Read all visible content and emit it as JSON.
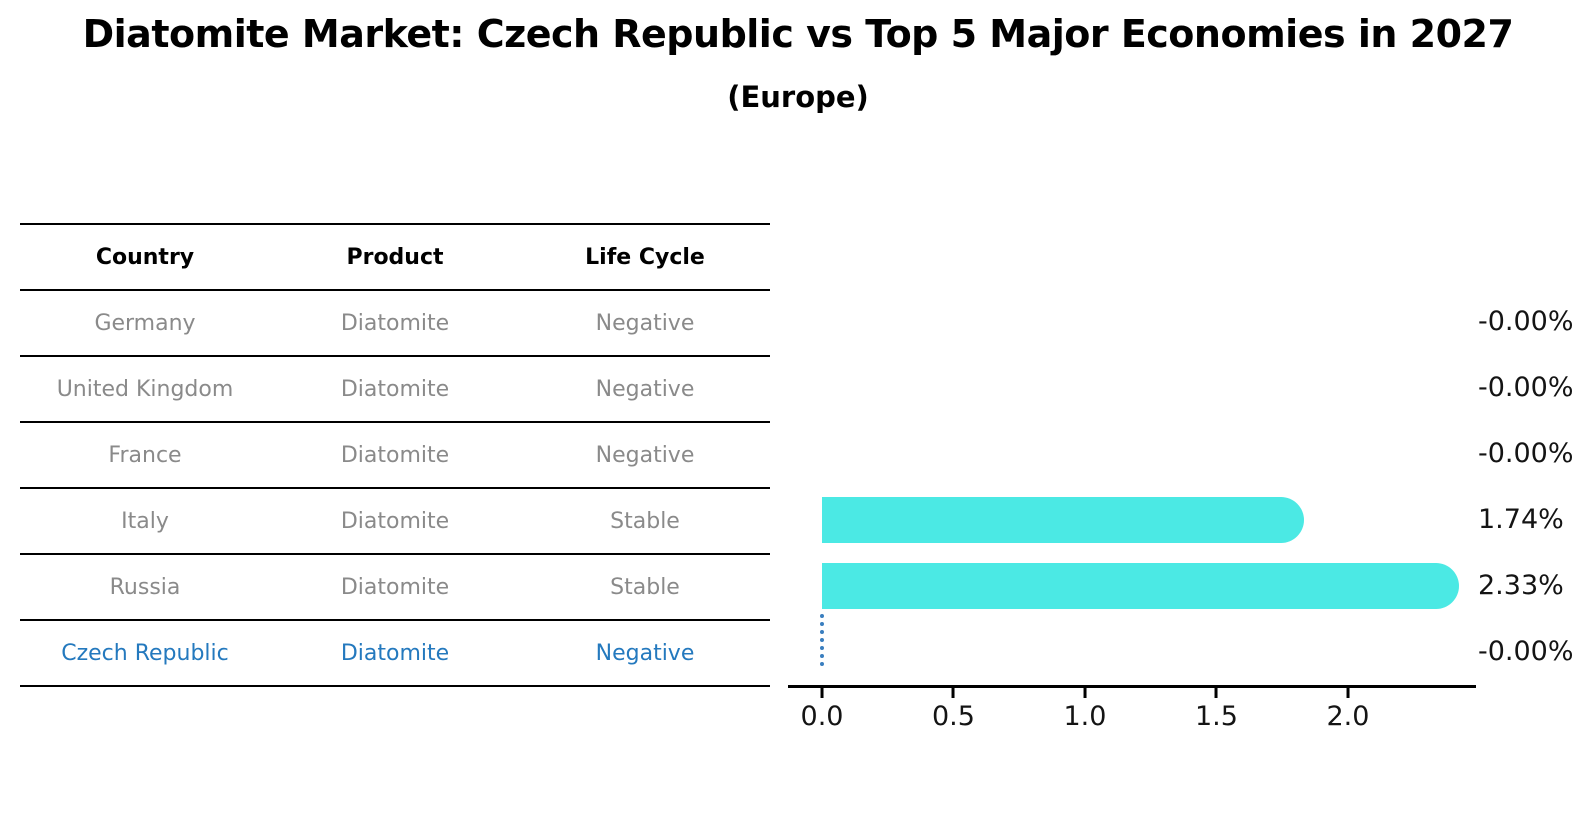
{
  "header": {
    "title": "Diatomite Market: Czech Republic vs Top 5 Major Economies in 2027",
    "subtitle": "(Europe)"
  },
  "table": {
    "columns": [
      "Country",
      "Product",
      "Life Cycle"
    ],
    "rows": [
      {
        "country": "Germany",
        "product": "Diatomite",
        "life_cycle": "Negative",
        "highlighted": false
      },
      {
        "country": "United Kingdom",
        "product": "Diatomite",
        "life_cycle": "Negative",
        "highlighted": false
      },
      {
        "country": "France",
        "product": "Diatomite",
        "life_cycle": "Negative",
        "highlighted": false
      },
      {
        "country": "Italy",
        "product": "Diatomite",
        "life_cycle": "Stable",
        "highlighted": false
      },
      {
        "country": "Russia",
        "product": "Diatomite",
        "life_cycle": "Stable",
        "highlighted": false
      },
      {
        "country": "Czech Republic",
        "product": "Diatomite",
        "life_cycle": "Negative",
        "highlighted": true
      }
    ]
  },
  "chart_data": {
    "type": "bar",
    "orientation": "horizontal",
    "title": "Diatomite Market: Czech Republic vs Top 5 Major Economies in 2027",
    "subtitle": "(Europe)",
    "categories": [
      "Germany",
      "United Kingdom",
      "France",
      "Italy",
      "Russia",
      "Czech Republic"
    ],
    "values": [
      -0.0,
      -0.0,
      -0.0,
      1.74,
      2.33,
      -0.0
    ],
    "value_labels": [
      "-0.00%",
      "-0.00%",
      "-0.00%",
      "1.74%",
      "2.33%",
      "-0.00%"
    ],
    "x_ticks": [
      0.0,
      0.5,
      1.0,
      1.5,
      2.0
    ],
    "x_tick_labels": [
      "0.0",
      "0.5",
      "1.0",
      "1.5",
      "2.0"
    ],
    "xlim": [
      0,
      2.487
    ],
    "grid": false,
    "legend": false,
    "bar_color": "#4be9e4",
    "highlight_line_color": "#3a7ebf",
    "highlight_index": 5,
    "xlabel": "",
    "ylabel": ""
  },
  "colors": {
    "accent_blue": "#2479be",
    "bar_cyan": "#4be9e4",
    "table_text_gray": "#8a8a8a",
    "axis_black": "#000000"
  }
}
